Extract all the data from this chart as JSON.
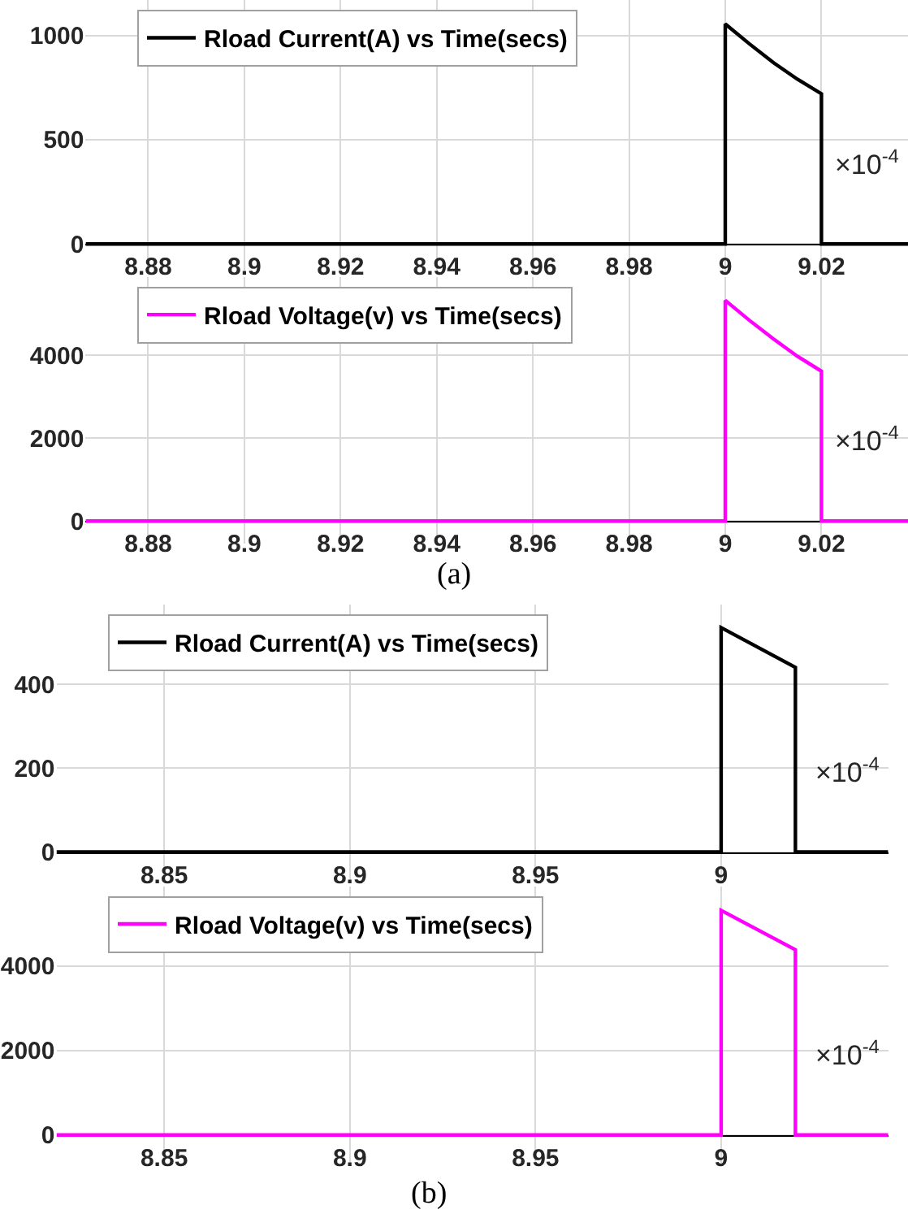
{
  "chart_data": [
    {
      "type": "line",
      "xlim": [
        8.867,
        9.038
      ],
      "xticks": [
        8.88,
        8.9,
        8.92,
        8.94,
        8.96,
        8.98,
        9,
        9.02
      ],
      "ylim": [
        -140,
        1170
      ],
      "yticks": [
        0,
        500,
        1000
      ],
      "grid": true,
      "legend": "top left",
      "annotations": [
        "×10$^{-4}$"
      ],
      "series": [
        {
          "name": "Rload Current(A) vs Time(secs)",
          "color": "#000000",
          "x": [
            8.867,
            9,
            9,
            9.005,
            9.01,
            9.015,
            9.02,
            9.02,
            9.038
          ],
          "values": [
            0,
            0,
            1055,
            960,
            870,
            790,
            720,
            0,
            0
          ]
        }
      ]
    },
    {
      "type": "line",
      "xlim": [
        8.867,
        9.038
      ],
      "xticks": [
        8.88,
        8.9,
        8.92,
        8.94,
        8.96,
        8.98,
        9,
        9.02
      ],
      "ylim": [
        -550,
        5900
      ],
      "yticks": [
        0,
        2000,
        4000
      ],
      "grid": true,
      "legend": "top left",
      "annotations": [
        "×10$^{-4}$",
        "(a)"
      ],
      "series": [
        {
          "name": "Rload Voltage(v) vs Time(secs)",
          "color": "#ff00ff",
          "x": [
            8.867,
            9,
            9,
            9.005,
            9.01,
            9.015,
            9.02,
            9.02,
            9.038
          ],
          "values": [
            0,
            0,
            5330,
            4850,
            4400,
            3980,
            3620,
            0,
            0
          ]
        }
      ]
    },
    {
      "type": "line",
      "xlim": [
        8.821,
        9.045
      ],
      "xticks": [
        8.85,
        8.9,
        8.95,
        9
      ],
      "ylim": [
        -70,
        590
      ],
      "yticks": [
        0,
        200,
        400
      ],
      "grid": true,
      "legend": "top left",
      "annotations": [
        "×10$^{-4}$"
      ],
      "series": [
        {
          "name": "Rload Current(A) vs Time(secs)",
          "color": "#000000",
          "x": [
            8.821,
            9,
            9,
            9.02,
            9.02,
            9.045
          ],
          "values": [
            0,
            0,
            535,
            440,
            0,
            0
          ]
        }
      ]
    },
    {
      "type": "line",
      "xlim": [
        8.821,
        9.045
      ],
      "xticks": [
        8.85,
        8.9,
        8.95,
        9
      ],
      "ylim": [
        -690,
        5880
      ],
      "yticks": [
        0,
        2000,
        4000
      ],
      "grid": true,
      "legend": "top left",
      "annotations": [
        "×10$^{-4}$",
        "(b)"
      ],
      "series": [
        {
          "name": "Rload Voltage(v) vs Time(secs)",
          "color": "#ff00ff",
          "x": [
            8.821,
            9,
            9,
            9.02,
            9.02,
            9.045
          ],
          "values": [
            0,
            0,
            5310,
            4380,
            0,
            0
          ]
        }
      ]
    }
  ]
}
